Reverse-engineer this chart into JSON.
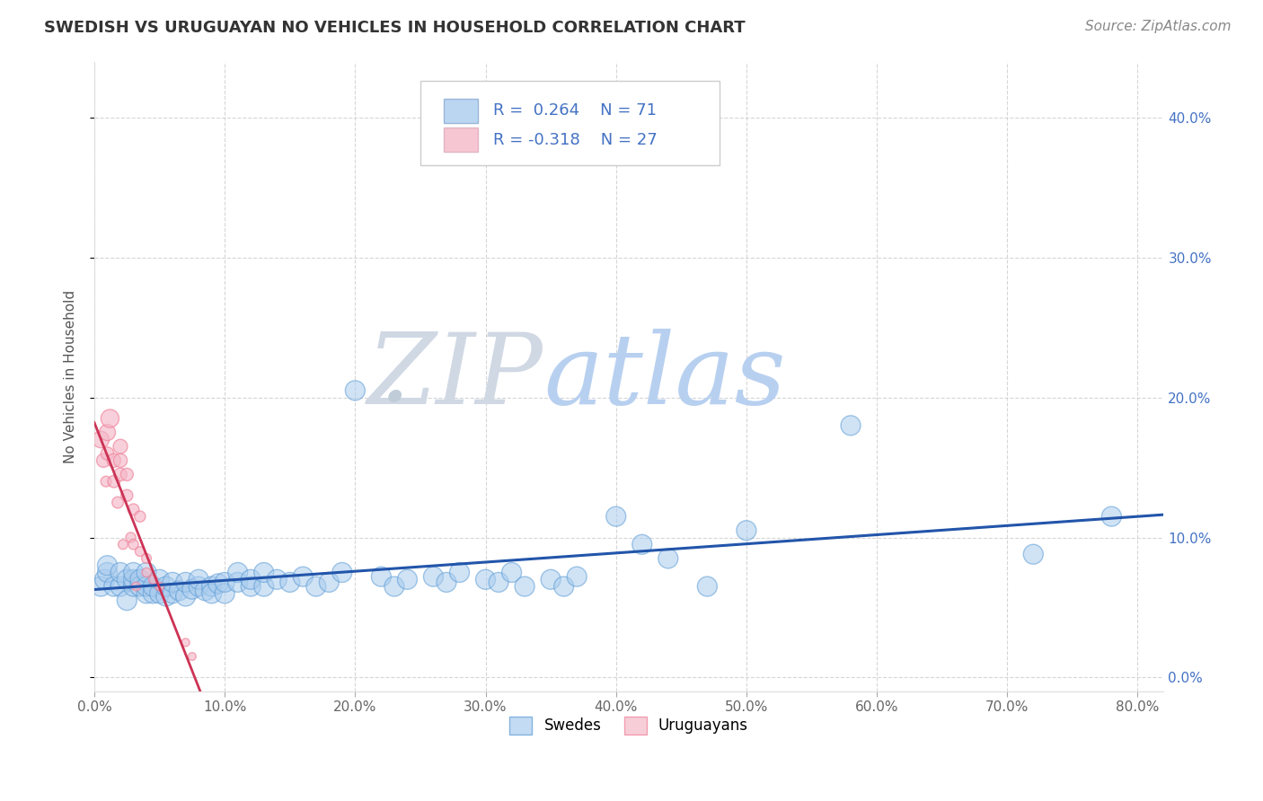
{
  "title": "SWEDISH VS URUGUAYAN NO VEHICLES IN HOUSEHOLD CORRELATION CHART",
  "source_text": "Source: ZipAtlas.com",
  "ylabel": "No Vehicles in Household",
  "xlim": [
    0.0,
    0.82
  ],
  "ylim": [
    -0.01,
    0.44
  ],
  "xticks": [
    0.0,
    0.1,
    0.2,
    0.3,
    0.4,
    0.5,
    0.6,
    0.7,
    0.8
  ],
  "xtick_labels": [
    "0.0%",
    "10.0%",
    "20.0%",
    "30.0%",
    "40.0%",
    "50.0%",
    "60.0%",
    "70.0%",
    "80.0%"
  ],
  "yticks": [
    0.0,
    0.1,
    0.2,
    0.3,
    0.4
  ],
  "ytick_labels": [
    "0.0%",
    "10.0%",
    "20.0%",
    "30.0%",
    "40.0%"
  ],
  "grid_color": "#cccccc",
  "background_color": "#ffffff",
  "title_fontsize": 13,
  "title_color": "#333333",
  "watermark_zip": "ZIP",
  "watermark_atlas": "atlas",
  "watermark_dot": ".",
  "watermark_color_zip": "#c8d8e8",
  "watermark_color_atlas": "#b8d0f0",
  "source_fontsize": 11,
  "legend_label1": "Swedes",
  "legend_label2": "Uruguayans",
  "blue_color": "#aaccee",
  "pink_color": "#f4b8c8",
  "blue_edge_color": "#5b9bd5",
  "pink_edge_color": "#f08098",
  "blue_line_color": "#2255aa",
  "pink_line_color": "#cc3355",
  "swedes_x": [
    0.005,
    0.008,
    0.01,
    0.01,
    0.015,
    0.02,
    0.02,
    0.025,
    0.025,
    0.03,
    0.03,
    0.03,
    0.035,
    0.035,
    0.04,
    0.04,
    0.04,
    0.045,
    0.045,
    0.05,
    0.05,
    0.055,
    0.055,
    0.06,
    0.06,
    0.065,
    0.07,
    0.07,
    0.075,
    0.08,
    0.08,
    0.085,
    0.09,
    0.09,
    0.095,
    0.1,
    0.1,
    0.11,
    0.11,
    0.12,
    0.12,
    0.13,
    0.13,
    0.14,
    0.15,
    0.16,
    0.17,
    0.18,
    0.19,
    0.2,
    0.22,
    0.23,
    0.24,
    0.26,
    0.27,
    0.28,
    0.3,
    0.31,
    0.32,
    0.33,
    0.35,
    0.36,
    0.37,
    0.4,
    0.42,
    0.44,
    0.47,
    0.5,
    0.58,
    0.72,
    0.78
  ],
  "swedes_y": [
    0.065,
    0.07,
    0.075,
    0.08,
    0.065,
    0.065,
    0.075,
    0.055,
    0.07,
    0.065,
    0.07,
    0.075,
    0.065,
    0.07,
    0.06,
    0.065,
    0.075,
    0.06,
    0.065,
    0.06,
    0.07,
    0.058,
    0.065,
    0.06,
    0.068,
    0.062,
    0.058,
    0.068,
    0.063,
    0.065,
    0.07,
    0.062,
    0.065,
    0.06,
    0.067,
    0.06,
    0.068,
    0.068,
    0.075,
    0.065,
    0.07,
    0.065,
    0.075,
    0.07,
    0.068,
    0.072,
    0.065,
    0.068,
    0.075,
    0.205,
    0.072,
    0.065,
    0.07,
    0.072,
    0.068,
    0.075,
    0.07,
    0.068,
    0.075,
    0.065,
    0.07,
    0.065,
    0.072,
    0.115,
    0.095,
    0.085,
    0.065,
    0.105,
    0.18,
    0.088,
    0.115
  ],
  "swedes_size": [
    50,
    50,
    50,
    50,
    50,
    50,
    50,
    50,
    50,
    50,
    50,
    50,
    50,
    50,
    50,
    50,
    50,
    50,
    50,
    50,
    50,
    50,
    50,
    50,
    50,
    50,
    50,
    50,
    50,
    50,
    50,
    50,
    50,
    50,
    50,
    50,
    50,
    50,
    50,
    50,
    50,
    50,
    50,
    50,
    50,
    50,
    50,
    50,
    50,
    50,
    50,
    50,
    50,
    50,
    50,
    50,
    50,
    50,
    50,
    50,
    50,
    50,
    50,
    50,
    50,
    50,
    50,
    50,
    50,
    50,
    50
  ],
  "uruguayans_x": [
    0.005,
    0.007,
    0.009,
    0.01,
    0.01,
    0.012,
    0.015,
    0.015,
    0.018,
    0.02,
    0.02,
    0.02,
    0.022,
    0.025,
    0.025,
    0.028,
    0.03,
    0.03,
    0.032,
    0.035,
    0.035,
    0.04,
    0.04,
    0.045,
    0.05,
    0.07,
    0.075
  ],
  "uruguayans_y": [
    0.17,
    0.155,
    0.14,
    0.175,
    0.16,
    0.185,
    0.14,
    0.155,
    0.125,
    0.145,
    0.155,
    0.165,
    0.095,
    0.13,
    0.145,
    0.1,
    0.12,
    0.095,
    0.065,
    0.115,
    0.09,
    0.075,
    0.085,
    0.07,
    0.065,
    0.025,
    0.015
  ],
  "uruguayans_size": [
    300,
    200,
    120,
    280,
    180,
    350,
    160,
    200,
    140,
    180,
    200,
    220,
    100,
    150,
    170,
    110,
    140,
    110,
    80,
    130,
    100,
    90,
    100,
    85,
    80,
    70,
    65
  ],
  "pink_trend_xrange": [
    0.0,
    0.58
  ]
}
